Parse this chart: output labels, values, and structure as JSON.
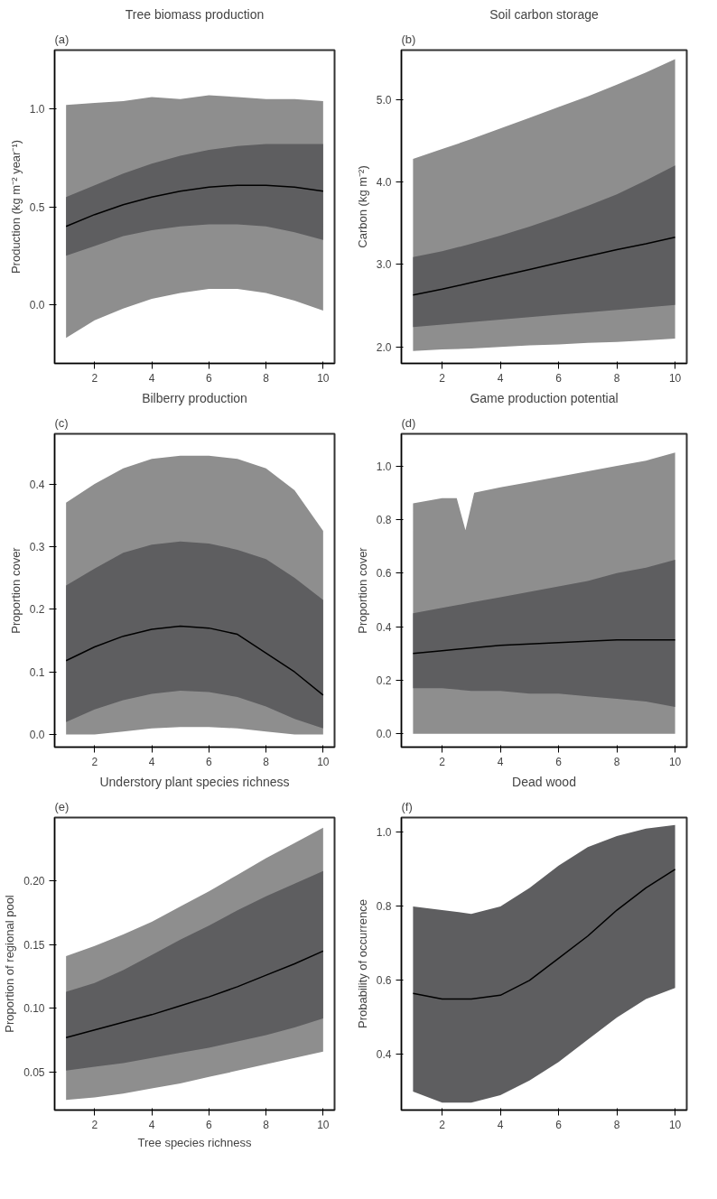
{
  "chart_data": [
    {
      "type": "line",
      "title": "Tree biomass production",
      "ylabel": "Production (kg m⁻² year⁻¹)",
      "annotations": [
        "(a)"
      ],
      "grid": false,
      "x": [
        1,
        2,
        3,
        4,
        5,
        6,
        7,
        8,
        9,
        10
      ],
      "xlim": [
        0.6,
        10.4
      ],
      "xticks": [
        2,
        4,
        6,
        8,
        10
      ],
      "ylim": [
        -0.3,
        1.3
      ],
      "yticks": [
        {
          "value": 0,
          "label": "0.0"
        },
        {
          "value": 0.5,
          "label": "0.5"
        },
        {
          "value": 1,
          "label": "1.0"
        }
      ],
      "series": [
        {
          "color": "#8e8e8e",
          "values": [
            null,
            null,
            null,
            null,
            null,
            null,
            null,
            null,
            null,
            null
          ],
          "upper": [
            1.02,
            1.03,
            1.04,
            1.06,
            1.05,
            1.07,
            1.06,
            1.05,
            1.05,
            1.04
          ],
          "lower": [
            -0.17,
            -0.08,
            -0.02,
            0.03,
            0.06,
            0.08,
            0.08,
            0.06,
            0.02,
            -0.03
          ]
        },
        {
          "color": "#000000",
          "values": [
            0.4,
            0.46,
            0.51,
            0.55,
            0.58,
            0.6,
            0.61,
            0.61,
            0.6,
            0.58
          ],
          "upper": [
            0.55,
            0.61,
            0.67,
            0.72,
            0.76,
            0.79,
            0.81,
            0.82,
            0.82,
            0.82
          ],
          "lower": [
            0.25,
            0.3,
            0.35,
            0.38,
            0.4,
            0.41,
            0.41,
            0.4,
            0.37,
            0.33
          ]
        }
      ]
    },
    {
      "type": "line",
      "title": "Soil carbon storage",
      "ylabel": "Carbon (kg m⁻²)",
      "annotations": [
        "(b)"
      ],
      "grid": false,
      "x": [
        1,
        2,
        3,
        4,
        5,
        6,
        7,
        8,
        9,
        10
      ],
      "xlim": [
        0.6,
        10.4
      ],
      "xticks": [
        2,
        4,
        6,
        8,
        10
      ],
      "ylim": [
        1.8,
        5.6
      ],
      "yticks": [
        {
          "value": 2,
          "label": "2.0"
        },
        {
          "value": 3,
          "label": "3.0"
        },
        {
          "value": 4,
          "label": "4.0"
        },
        {
          "value": 5,
          "label": "5.0"
        }
      ],
      "series": [
        {
          "color": "#8e8e8e",
          "values": [
            null,
            null,
            null,
            null,
            null,
            null,
            null,
            null,
            null,
            null
          ],
          "upper": [
            4.28,
            4.4,
            4.52,
            4.65,
            4.78,
            4.91,
            5.04,
            5.18,
            5.33,
            5.49
          ],
          "lower": [
            1.95,
            1.97,
            1.98,
            2.0,
            2.02,
            2.03,
            2.05,
            2.06,
            2.08,
            2.1
          ]
        },
        {
          "color": "#000000",
          "values": [
            2.63,
            2.7,
            2.78,
            2.86,
            2.94,
            3.02,
            3.1,
            3.18,
            3.25,
            3.33
          ],
          "upper": [
            3.09,
            3.16,
            3.25,
            3.35,
            3.46,
            3.58,
            3.71,
            3.85,
            4.02,
            4.2
          ],
          "lower": [
            2.24,
            2.27,
            2.3,
            2.33,
            2.36,
            2.39,
            2.42,
            2.45,
            2.48,
            2.51
          ]
        }
      ]
    },
    {
      "type": "line",
      "title": "Bilberry production",
      "ylabel": "Proportion cover",
      "annotations": [
        "(c)"
      ],
      "grid": false,
      "x": [
        1,
        2,
        3,
        4,
        5,
        6,
        7,
        8,
        9,
        10
      ],
      "xlim": [
        0.6,
        10.4
      ],
      "xticks": [
        2,
        4,
        6,
        8,
        10
      ],
      "ylim": [
        -0.02,
        0.48
      ],
      "yticks": [
        {
          "value": 0,
          "label": "0.0"
        },
        0.1,
        0.2,
        0.3,
        0.4
      ],
      "series": [
        {
          "color": "#8e8e8e",
          "values": [
            null,
            null,
            null,
            null,
            null,
            null,
            null,
            null,
            null,
            null
          ],
          "upper": [
            0.37,
            0.4,
            0.425,
            0.44,
            0.445,
            0.445,
            0.44,
            0.425,
            0.39,
            0.325
          ],
          "lower": [
            0,
            0,
            0.005,
            0.01,
            0.012,
            0.012,
            0.01,
            0.005,
            0,
            0
          ]
        },
        {
          "color": "#000000",
          "values": [
            0.118,
            0.14,
            0.157,
            0.168,
            0.173,
            0.17,
            0.16,
            0.13,
            0.1,
            0.063
          ],
          "upper": [
            0.238,
            0.265,
            0.29,
            0.303,
            0.308,
            0.305,
            0.295,
            0.28,
            0.25,
            0.215
          ],
          "lower": [
            0.02,
            0.04,
            0.055,
            0.065,
            0.07,
            0.068,
            0.06,
            0.045,
            0.025,
            0.01
          ]
        }
      ]
    },
    {
      "type": "line",
      "title": "Game production potential",
      "ylabel": "Proportion cover",
      "annotations": [
        "(d)"
      ],
      "grid": false,
      "x": [
        1,
        2,
        3,
        4,
        5,
        6,
        7,
        8,
        9,
        10
      ],
      "xlim": [
        0.6,
        10.4
      ],
      "xticks": [
        2,
        4,
        6,
        8,
        10
      ],
      "ylim": [
        -0.05,
        1.12
      ],
      "yticks": [
        {
          "value": 0,
          "label": "0.0"
        },
        0.2,
        0.4,
        0.6,
        0.8,
        {
          "value": 1,
          "label": "1.0"
        }
      ],
      "series": [
        {
          "color": "#8e8e8e",
          "x": [
            1,
            2,
            2.5,
            2.8,
            3.1,
            4,
            5,
            6,
            7,
            8,
            9,
            10
          ],
          "values": [
            null,
            null,
            null,
            null,
            null,
            null,
            null,
            null,
            null,
            null,
            null,
            null
          ],
          "upper": [
            0.86,
            0.88,
            0.88,
            0.76,
            0.9,
            0.92,
            0.94,
            0.96,
            0.98,
            1.0,
            1.02,
            1.05
          ],
          "lower": [
            0,
            0,
            0,
            0,
            0,
            0,
            0,
            0,
            0,
            0,
            0,
            0
          ]
        },
        {
          "color": "#000000",
          "values": [
            0.3,
            0.31,
            0.32,
            0.33,
            0.335,
            0.34,
            0.345,
            0.35,
            0.35,
            0.35
          ],
          "upper": [
            0.45,
            0.47,
            0.49,
            0.51,
            0.53,
            0.55,
            0.57,
            0.6,
            0.62,
            0.65
          ],
          "lower": [
            0.17,
            0.17,
            0.16,
            0.16,
            0.15,
            0.15,
            0.14,
            0.13,
            0.12,
            0.1
          ]
        }
      ]
    },
    {
      "type": "line",
      "title": "Understory plant species richness",
      "ylabel": "Proportion of regional pool",
      "xlabel": "Tree species richness",
      "annotations": [
        "(e)"
      ],
      "grid": false,
      "x": [
        1,
        2,
        3,
        4,
        5,
        6,
        7,
        8,
        9,
        10
      ],
      "xlim": [
        0.6,
        10.4
      ],
      "xticks": [
        2,
        4,
        6,
        8,
        10
      ],
      "ylim": [
        0.02,
        0.25
      ],
      "yticks": [
        0.05,
        {
          "value": 0.1,
          "label": "0.10"
        },
        0.15,
        {
          "value": 0.2,
          "label": "0.20"
        }
      ],
      "series": [
        {
          "color": "#8e8e8e",
          "values": [
            null,
            null,
            null,
            null,
            null,
            null,
            null,
            null,
            null,
            null
          ],
          "upper": [
            0.141,
            0.149,
            0.158,
            0.168,
            0.18,
            0.192,
            0.205,
            0.218,
            0.23,
            0.242
          ],
          "lower": [
            0.028,
            0.03,
            0.033,
            0.037,
            0.041,
            0.046,
            0.051,
            0.056,
            0.061,
            0.066
          ]
        },
        {
          "color": "#000000",
          "values": [
            0.077,
            0.083,
            0.089,
            0.095,
            0.102,
            0.109,
            0.117,
            0.126,
            0.135,
            0.145
          ],
          "upper": [
            0.113,
            0.12,
            0.13,
            0.142,
            0.154,
            0.165,
            0.177,
            0.188,
            0.198,
            0.208
          ],
          "lower": [
            0.051,
            0.054,
            0.057,
            0.061,
            0.065,
            0.069,
            0.074,
            0.079,
            0.085,
            0.092
          ]
        }
      ]
    },
    {
      "type": "line",
      "title": "Dead wood",
      "ylabel": "Probability of occurrence",
      "annotations": [
        "(f)"
      ],
      "grid": false,
      "x": [
        1,
        2,
        3,
        4,
        5,
        6,
        7,
        8,
        9,
        10
      ],
      "xlim": [
        0.6,
        10.4
      ],
      "xticks": [
        2,
        4,
        6,
        8,
        10
      ],
      "ylim": [
        0.25,
        1.04
      ],
      "yticks": [
        0.4,
        0.6,
        0.8,
        {
          "value": 1,
          "label": "1.0"
        }
      ],
      "series": [
        {
          "color": "#000000",
          "values": [
            0.565,
            0.55,
            0.55,
            0.56,
            0.6,
            0.66,
            0.72,
            0.79,
            0.85,
            0.9
          ],
          "upper": [
            0.8,
            0.79,
            0.78,
            0.8,
            0.85,
            0.91,
            0.96,
            0.99,
            1.01,
            1.02
          ],
          "lower": [
            0.3,
            0.27,
            0.27,
            0.29,
            0.33,
            0.38,
            0.44,
            0.5,
            0.55,
            0.58
          ]
        }
      ]
    }
  ]
}
